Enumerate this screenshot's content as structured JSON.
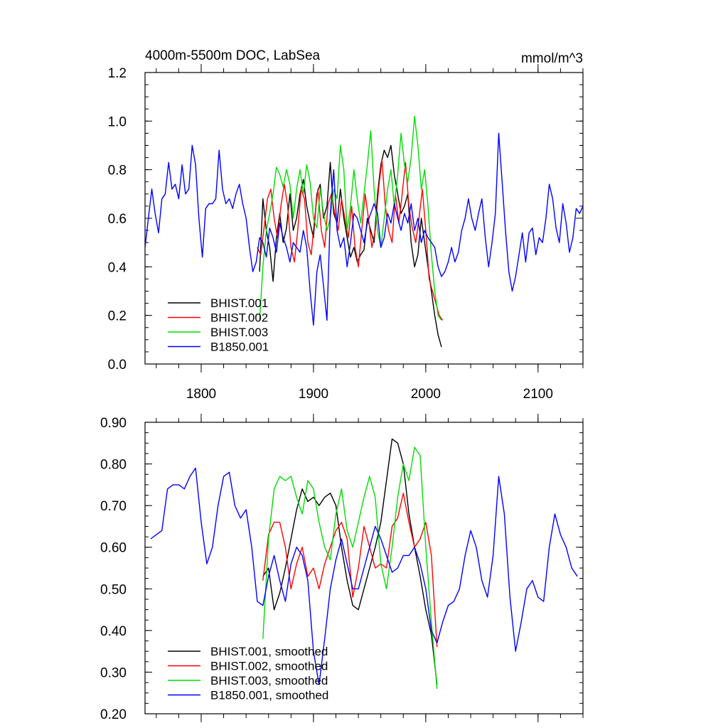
{
  "chart_data": [
    {
      "type": "line",
      "title": "4000m-5500m DOC, LabSea",
      "units": "mmol/m^3",
      "xlim": [
        1750,
        2140
      ],
      "ylim": [
        0.0,
        1.2
      ],
      "xticks": [
        1800,
        1900,
        2000,
        2100
      ],
      "yticks": [
        0.0,
        0.2,
        0.4,
        0.6,
        0.8,
        1.0,
        1.2
      ],
      "ytick_labels": [
        "0.0",
        "0.2",
        "0.4",
        "0.6",
        "0.8",
        "1.0",
        "1.2"
      ],
      "legend_position": "bottom-left",
      "series": [
        {
          "name": "BHIST.001",
          "color": "#000000",
          "x": [
            1852,
            1855,
            1858,
            1861,
            1864,
            1867,
            1870,
            1873,
            1876,
            1879,
            1882,
            1885,
            1888,
            1891,
            1894,
            1897,
            1900,
            1903,
            1906,
            1909,
            1912,
            1915,
            1918,
            1921,
            1924,
            1927,
            1930,
            1933,
            1936,
            1939,
            1942,
            1945,
            1948,
            1951,
            1954,
            1957,
            1960,
            1963,
            1966,
            1969,
            1972,
            1975,
            1978,
            1981,
            1984,
            1987,
            1990,
            1993,
            1996,
            1999,
            2002,
            2005,
            2008,
            2011,
            2014
          ],
          "y": [
            0.38,
            0.68,
            0.55,
            0.48,
            0.34,
            0.52,
            0.62,
            0.5,
            0.56,
            0.7,
            0.55,
            0.6,
            0.7,
            0.76,
            0.65,
            0.58,
            0.52,
            0.7,
            0.74,
            0.6,
            0.65,
            0.83,
            0.62,
            0.58,
            0.72,
            0.6,
            0.52,
            0.44,
            0.48,
            0.42,
            0.45,
            0.47,
            0.6,
            0.55,
            0.5,
            0.7,
            0.82,
            0.88,
            0.85,
            0.9,
            0.78,
            0.7,
            0.62,
            0.65,
            0.7,
            0.5,
            0.4,
            0.45,
            0.6,
            0.5,
            0.4,
            0.3,
            0.2,
            0.12,
            0.07
          ]
        },
        {
          "name": "BHIST.002",
          "color": "#ff0000",
          "x": [
            1850,
            1853,
            1856,
            1859,
            1862,
            1865,
            1868,
            1871,
            1874,
            1877,
            1880,
            1883,
            1886,
            1889,
            1892,
            1895,
            1898,
            1901,
            1904,
            1907,
            1910,
            1913,
            1916,
            1919,
            1922,
            1925,
            1928,
            1931,
            1934,
            1937,
            1940,
            1943,
            1946,
            1949,
            1952,
            1955,
            1958,
            1961,
            1964,
            1967,
            1970,
            1973,
            1976,
            1979,
            1982,
            1985,
            1988,
            1991,
            1994,
            1997,
            2000,
            2003,
            2006,
            2009,
            2012,
            2015
          ],
          "y": [
            0.48,
            0.45,
            0.56,
            0.68,
            0.72,
            0.6,
            0.52,
            0.65,
            0.74,
            0.65,
            0.48,
            0.42,
            0.55,
            0.72,
            0.68,
            0.5,
            0.45,
            0.6,
            0.72,
            0.55,
            0.48,
            0.66,
            0.7,
            0.62,
            0.55,
            0.68,
            0.6,
            0.52,
            0.65,
            0.48,
            0.4,
            0.55,
            0.7,
            0.6,
            0.48,
            0.55,
            0.72,
            0.84,
            0.65,
            0.55,
            0.5,
            0.7,
            0.58,
            0.7,
            0.83,
            0.65,
            0.56,
            0.5,
            0.6,
            0.72,
            0.55,
            0.35,
            0.3,
            0.25,
            0.2,
            0.18
          ]
        },
        {
          "name": "BHIST.003",
          "color": "#00dd00",
          "x": [
            1852,
            1855,
            1858,
            1861,
            1864,
            1867,
            1870,
            1873,
            1876,
            1879,
            1882,
            1885,
            1888,
            1891,
            1894,
            1897,
            1900,
            1903,
            1906,
            1909,
            1912,
            1915,
            1918,
            1921,
            1924,
            1927,
            1930,
            1933,
            1936,
            1939,
            1942,
            1945,
            1948,
            1951,
            1954,
            1957,
            1960,
            1963,
            1966,
            1969,
            1972,
            1975,
            1978,
            1981,
            1984,
            1987,
            1990,
            1993,
            1996,
            1999,
            2002,
            2005,
            2008,
            2011,
            2014
          ],
          "y": [
            0.18,
            0.4,
            0.55,
            0.62,
            0.7,
            0.81,
            0.78,
            0.73,
            0.8,
            0.74,
            0.6,
            0.72,
            0.8,
            0.7,
            0.82,
            0.75,
            0.6,
            0.56,
            0.72,
            0.62,
            0.55,
            0.6,
            0.72,
            0.68,
            0.9,
            0.8,
            0.55,
            0.65,
            0.8,
            0.68,
            0.58,
            0.7,
            0.82,
            0.96,
            0.72,
            0.55,
            0.48,
            0.6,
            0.72,
            0.8,
            0.65,
            0.78,
            0.95,
            0.82,
            0.75,
            0.85,
            1.02,
            0.9,
            0.72,
            0.8,
            0.65,
            0.45,
            0.3,
            0.2,
            0.18
          ]
        },
        {
          "name": "B1850.001",
          "color": "#0000ff",
          "x": [
            1750,
            1753,
            1756,
            1759,
            1762,
            1765,
            1768,
            1771,
            1774,
            1777,
            1780,
            1783,
            1786,
            1789,
            1792,
            1795,
            1798,
            1801,
            1804,
            1807,
            1810,
            1813,
            1816,
            1819,
            1822,
            1825,
            1828,
            1831,
            1834,
            1837,
            1840,
            1843,
            1846,
            1849,
            1852,
            1855,
            1858,
            1861,
            1864,
            1867,
            1870,
            1873,
            1876,
            1879,
            1882,
            1885,
            1888,
            1891,
            1894,
            1897,
            1900,
            1903,
            1906,
            1909,
            1912,
            1915,
            1918,
            1921,
            1924,
            1927,
            1930,
            1933,
            1936,
            1939,
            1942,
            1945,
            1948,
            1951,
            1954,
            1957,
            1960,
            1963,
            1966,
            1969,
            1972,
            1975,
            1978,
            1981,
            1984,
            1987,
            1990,
            1993,
            1996,
            1999,
            2002,
            2005,
            2008,
            2011,
            2014,
            2017,
            2020,
            2023,
            2026,
            2029,
            2032,
            2035,
            2038,
            2041,
            2044,
            2047,
            2050,
            2053,
            2056,
            2059,
            2062,
            2065,
            2068,
            2071,
            2074,
            2077,
            2080,
            2083,
            2086,
            2089,
            2092,
            2095,
            2098,
            2101,
            2104,
            2107,
            2110,
            2113,
            2116,
            2119,
            2122,
            2125,
            2128,
            2131,
            2134,
            2137,
            2140
          ],
          "y": [
            0.48,
            0.6,
            0.72,
            0.62,
            0.54,
            0.68,
            0.7,
            0.83,
            0.72,
            0.74,
            0.68,
            0.82,
            0.7,
            0.72,
            0.9,
            0.82,
            0.6,
            0.44,
            0.64,
            0.66,
            0.66,
            0.68,
            0.88,
            0.72,
            0.66,
            0.68,
            0.64,
            0.7,
            0.74,
            0.66,
            0.6,
            0.48,
            0.38,
            0.42,
            0.52,
            0.5,
            0.44,
            0.56,
            0.52,
            0.46,
            0.58,
            0.52,
            0.48,
            0.42,
            0.5,
            0.48,
            0.46,
            0.55,
            0.48,
            0.3,
            0.16,
            0.38,
            0.45,
            0.32,
            0.18,
            0.62,
            0.8,
            0.55,
            0.48,
            0.52,
            0.4,
            0.5,
            0.62,
            0.6,
            0.55,
            0.5,
            0.58,
            0.62,
            0.66,
            0.62,
            0.48,
            0.52,
            0.62,
            0.58,
            0.66,
            0.6,
            0.55,
            0.62,
            0.58,
            0.66,
            0.55,
            0.6,
            0.5,
            0.55,
            0.52,
            0.5,
            0.48,
            0.4,
            0.36,
            0.38,
            0.42,
            0.48,
            0.42,
            0.46,
            0.55,
            0.6,
            0.68,
            0.6,
            0.55,
            0.62,
            0.68,
            0.52,
            0.4,
            0.5,
            0.62,
            0.95,
            0.75,
            0.55,
            0.38,
            0.3,
            0.36,
            0.45,
            0.54,
            0.42,
            0.54,
            0.56,
            0.45,
            0.52,
            0.5,
            0.6,
            0.74,
            0.68,
            0.56,
            0.5,
            0.66,
            0.58,
            0.46,
            0.52,
            0.64,
            0.62,
            0.65
          ]
        }
      ]
    },
    {
      "type": "line",
      "title": "",
      "xlim": [
        1750,
        2140
      ],
      "ylim": [
        0.2,
        0.9
      ],
      "xticks": [
        1800,
        1900,
        2000,
        2100
      ],
      "yticks": [
        0.2,
        0.3,
        0.4,
        0.5,
        0.6,
        0.7,
        0.8,
        0.9
      ],
      "ytick_labels": [
        "0.20",
        "0.30",
        "0.40",
        "0.50",
        "0.60",
        "0.70",
        "0.80",
        "0.90"
      ],
      "legend_position": "bottom-left",
      "series": [
        {
          "name": "BHIST.001, smoothed",
          "color": "#000000",
          "x": [
            1855,
            1860,
            1865,
            1870,
            1875,
            1880,
            1885,
            1890,
            1895,
            1900,
            1905,
            1910,
            1915,
            1920,
            1925,
            1930,
            1935,
            1940,
            1945,
            1950,
            1955,
            1960,
            1965,
            1970,
            1975,
            1980,
            1985,
            1990,
            1995,
            2000,
            2005,
            2010
          ],
          "y": [
            0.53,
            0.55,
            0.45,
            0.49,
            0.55,
            0.62,
            0.69,
            0.74,
            0.71,
            0.72,
            0.7,
            0.72,
            0.73,
            0.7,
            0.6,
            0.52,
            0.46,
            0.45,
            0.5,
            0.55,
            0.6,
            0.66,
            0.76,
            0.86,
            0.85,
            0.8,
            0.68,
            0.6,
            0.53,
            0.45,
            0.39,
            0.27
          ]
        },
        {
          "name": "BHIST.002, smoothed",
          "color": "#ff0000",
          "x": [
            1855,
            1860,
            1865,
            1870,
            1875,
            1880,
            1885,
            1890,
            1895,
            1900,
            1905,
            1910,
            1915,
            1920,
            1925,
            1930,
            1935,
            1940,
            1945,
            1950,
            1955,
            1960,
            1965,
            1970,
            1975,
            1980,
            1985,
            1990,
            1995,
            2000,
            2005,
            2010
          ],
          "y": [
            0.52,
            0.63,
            0.66,
            0.66,
            0.6,
            0.5,
            0.56,
            0.6,
            0.53,
            0.55,
            0.5,
            0.56,
            0.6,
            0.64,
            0.66,
            0.62,
            0.48,
            0.55,
            0.65,
            0.6,
            0.55,
            0.56,
            0.55,
            0.65,
            0.67,
            0.73,
            0.66,
            0.6,
            0.62,
            0.66,
            0.58,
            0.36
          ]
        },
        {
          "name": "BHIST.003, smoothed",
          "color": "#00dd00",
          "x": [
            1855,
            1860,
            1865,
            1870,
            1875,
            1880,
            1885,
            1890,
            1895,
            1900,
            1905,
            1910,
            1915,
            1920,
            1925,
            1930,
            1935,
            1940,
            1945,
            1950,
            1955,
            1960,
            1965,
            1970,
            1975,
            1980,
            1985,
            1990,
            1995,
            2000,
            2005,
            2010
          ],
          "y": [
            0.38,
            0.62,
            0.74,
            0.77,
            0.76,
            0.77,
            0.72,
            0.68,
            0.76,
            0.74,
            0.66,
            0.6,
            0.57,
            0.68,
            0.74,
            0.64,
            0.6,
            0.66,
            0.72,
            0.77,
            0.72,
            0.56,
            0.5,
            0.6,
            0.72,
            0.8,
            0.76,
            0.84,
            0.82,
            0.6,
            0.42,
            0.26
          ]
        },
        {
          "name": "B1850.001, smoothed",
          "color": "#0000ff",
          "x": [
            1755,
            1760,
            1765,
            1770,
            1775,
            1780,
            1785,
            1790,
            1795,
            1800,
            1805,
            1810,
            1815,
            1820,
            1825,
            1830,
            1835,
            1840,
            1845,
            1850,
            1855,
            1860,
            1865,
            1870,
            1875,
            1880,
            1885,
            1890,
            1895,
            1900,
            1905,
            1910,
            1915,
            1920,
            1925,
            1930,
            1935,
            1940,
            1945,
            1950,
            1955,
            1960,
            1965,
            1970,
            1975,
            1980,
            1985,
            1990,
            1995,
            2000,
            2005,
            2010,
            2015,
            2020,
            2025,
            2030,
            2035,
            2040,
            2045,
            2050,
            2055,
            2060,
            2065,
            2070,
            2075,
            2080,
            2085,
            2090,
            2095,
            2100,
            2105,
            2110,
            2115,
            2120,
            2125,
            2130,
            2135
          ],
          "y": [
            0.62,
            0.63,
            0.64,
            0.74,
            0.75,
            0.75,
            0.74,
            0.77,
            0.79,
            0.66,
            0.56,
            0.6,
            0.7,
            0.77,
            0.78,
            0.7,
            0.67,
            0.69,
            0.6,
            0.47,
            0.46,
            0.53,
            0.58,
            0.52,
            0.47,
            0.56,
            0.6,
            0.58,
            0.52,
            0.35,
            0.27,
            0.38,
            0.5,
            0.57,
            0.62,
            0.56,
            0.5,
            0.5,
            0.55,
            0.6,
            0.65,
            0.62,
            0.58,
            0.54,
            0.55,
            0.58,
            0.58,
            0.6,
            0.56,
            0.5,
            0.4,
            0.37,
            0.42,
            0.46,
            0.47,
            0.5,
            0.58,
            0.64,
            0.6,
            0.52,
            0.48,
            0.58,
            0.77,
            0.68,
            0.48,
            0.35,
            0.42,
            0.5,
            0.52,
            0.48,
            0.47,
            0.6,
            0.68,
            0.63,
            0.6,
            0.55,
            0.53
          ]
        }
      ]
    }
  ]
}
